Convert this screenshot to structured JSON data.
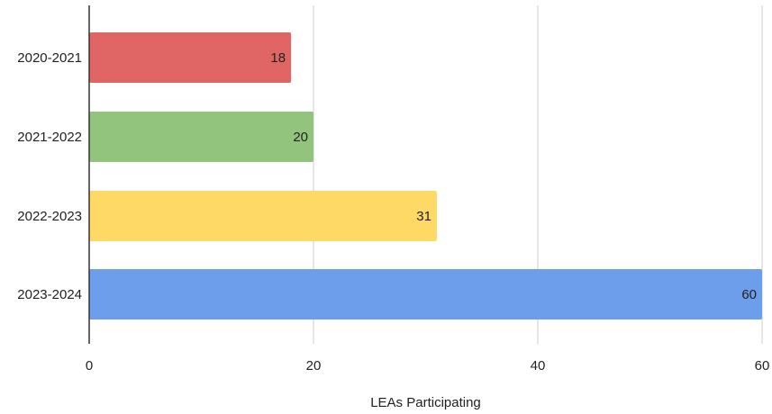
{
  "chart_data": {
    "type": "bar",
    "orientation": "horizontal",
    "categories": [
      "2020-2021",
      "2021-2022",
      "2022-2023",
      "2023-2024"
    ],
    "values": [
      18,
      20,
      31,
      60
    ],
    "colors": [
      "#e06666",
      "#93c47d",
      "#ffd966",
      "#6d9eeb"
    ],
    "data_labels": [
      "18",
      "20",
      "31",
      "60"
    ],
    "xlabel": "LEAs Participating",
    "ylabel": "",
    "title": "",
    "xlim": [
      0,
      60
    ],
    "x_ticks": [
      0,
      20,
      40,
      60
    ],
    "grid": true,
    "legend": "none"
  }
}
